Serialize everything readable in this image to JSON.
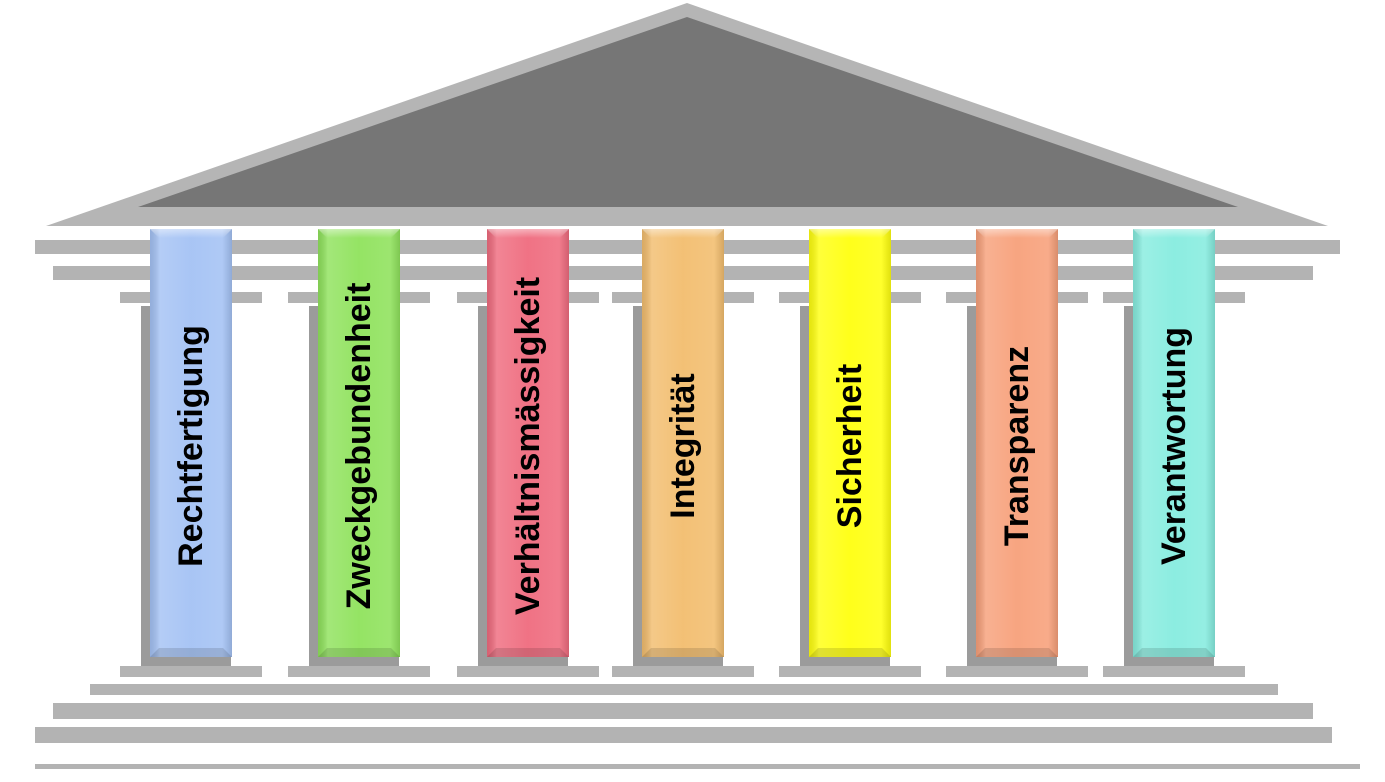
{
  "colors": {
    "roof_outer": "#b5b5b5",
    "roof_inner": "#767676",
    "structure_gray": "#b3b3b3",
    "shadow": "#8a8a8a",
    "label_text": "#000000"
  },
  "pillars": [
    {
      "label": "Rechtfertigung",
      "color": "#a4c2f4"
    },
    {
      "label": "Zweckgebundenheit",
      "color": "#8fe25c"
    },
    {
      "label": "Verhältnismässigkeit",
      "color": "#ef6b7e"
    },
    {
      "label": "Integrität",
      "color": "#f2bd6e"
    },
    {
      "label": "Sicherheit",
      "color": "#ffff0f"
    },
    {
      "label": "Transparenz",
      "color": "#f7a07a"
    },
    {
      "label": "Verantwortung",
      "color": "#86ecdf"
    }
  ]
}
